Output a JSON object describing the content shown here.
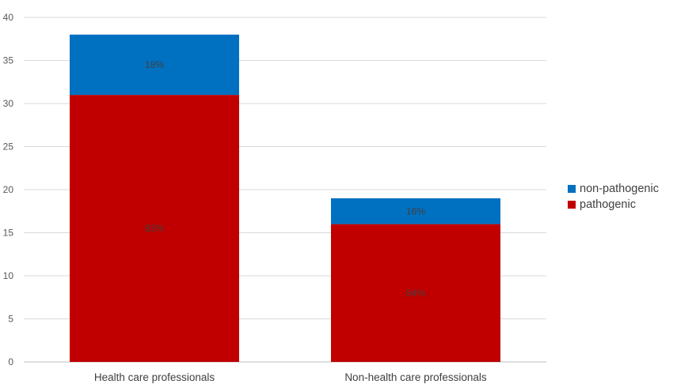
{
  "chart_data": {
    "type": "bar",
    "stacked": true,
    "categories": [
      "Health care professionals",
      "Non-health care professionals"
    ],
    "series": [
      {
        "name": "pathogenic",
        "values": [
          31,
          16
        ],
        "labels": [
          "82%",
          "84%"
        ],
        "color": "#c00000"
      },
      {
        "name": "non-pathogenic",
        "values": [
          7,
          3
        ],
        "labels": [
          "18%",
          "16%"
        ],
        "color": "#0070c0"
      }
    ],
    "ylim": [
      0,
      40
    ],
    "yticks": [
      0,
      5,
      10,
      15,
      20,
      25,
      30,
      35,
      40
    ],
    "grid": true,
    "legend_position": "right"
  }
}
